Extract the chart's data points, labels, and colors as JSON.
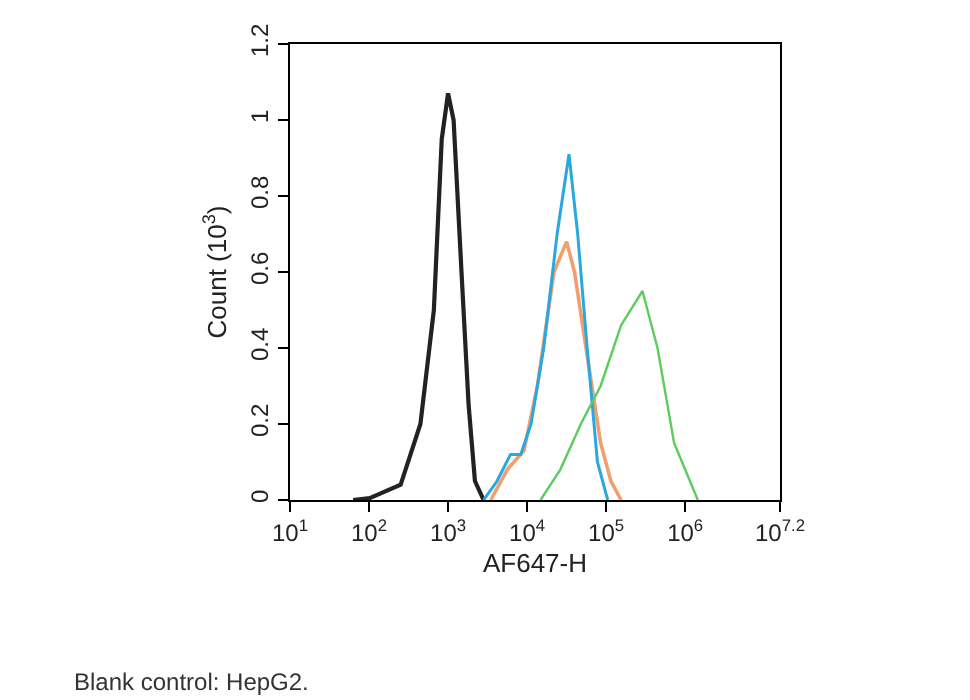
{
  "chart_data": {
    "type": "line",
    "xlabel": "AF647-H",
    "ylabel": "Count (10$^{3}$)",
    "log": "x",
    "xlim": [
      10,
      15848932
    ],
    "xticks": [
      {
        "value": 10,
        "label": "10$^{1}$"
      },
      {
        "value": 100,
        "label": "10$^{2}$"
      },
      {
        "value": 1000,
        "label": "10$^{3}$"
      },
      {
        "value": 10000,
        "label": "10$^{4}$"
      },
      {
        "value": 100000,
        "label": "10$^{5}$"
      },
      {
        "value": 1000000,
        "label": "10$^{6}$"
      },
      {
        "value": 15848932,
        "label": "10$^{7.2}$"
      }
    ],
    "ylim": [
      0,
      1.2
    ],
    "yticks": [
      0,
      0.2,
      0.4,
      0.6,
      0.8,
      1,
      1.2
    ],
    "marker": "none",
    "line_style": "solid",
    "annotations": [
      "Blank control: HepG2."
    ],
    "series": [
      {
        "color": "#222222",
        "x": [
          63,
          102,
          251,
          447,
          661,
          832,
          1000,
          1175,
          1479,
          1820,
          2188,
          2818
        ],
        "values": [
          0,
          0.005,
          0.04,
          0.2,
          0.5,
          0.95,
          1.07,
          1.0,
          0.6,
          0.25,
          0.05,
          0
        ]
      },
      {
        "color": "#f0a070",
        "x": [
          3467,
          5623,
          9120,
          13490,
          21878,
          31623,
          39811,
          57544,
          85114,
          114815,
          154882
        ],
        "values": [
          0,
          0.08,
          0.13,
          0.3,
          0.6,
          0.68,
          0.6,
          0.38,
          0.15,
          0.05,
          0
        ]
      },
      {
        "color": "#29a8e0",
        "x": [
          2818,
          4169,
          6166,
          8318,
          11220,
          16218,
          23988,
          33884,
          43652,
          57544,
          77625,
          104713
        ],
        "values": [
          0,
          0.05,
          0.12,
          0.12,
          0.2,
          0.4,
          0.7,
          0.91,
          0.7,
          0.4,
          0.1,
          0
        ]
      },
      {
        "color": "#5ccc5c",
        "x": [
          14791,
          26303,
          47863,
          85114,
          154882,
          288403,
          446684,
          724436,
          1445440
        ],
        "values": [
          0,
          0.08,
          0.2,
          0.3,
          0.46,
          0.55,
          0.4,
          0.15,
          0
        ]
      }
    ]
  }
}
